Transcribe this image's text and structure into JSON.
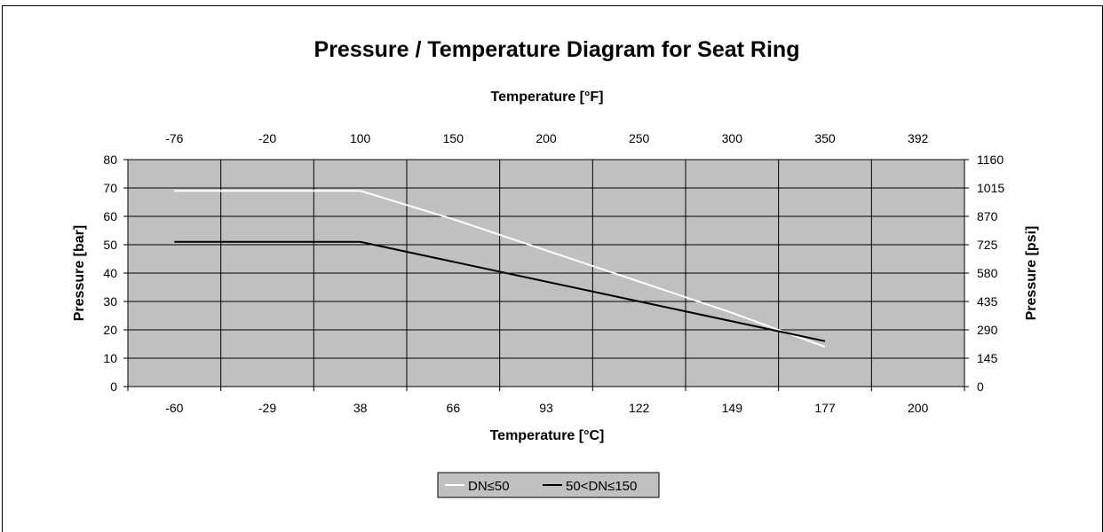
{
  "chart_data": {
    "type": "line",
    "title": "Pressure / Temperature Diagram for Seat Ring",
    "x_top_label": "Temperature [°F]",
    "x_bottom_label": "Temperature [°C]",
    "y_left_label": "Pressure [bar]",
    "y_right_label": "Pressure [psi]",
    "x_categories_c": [
      "-60",
      "-29",
      "38",
      "66",
      "93",
      "122",
      "149",
      "177",
      "200"
    ],
    "x_categories_f": [
      "-76",
      "-20",
      "100",
      "150",
      "200",
      "250",
      "300",
      "350",
      "392"
    ],
    "y_left_ticks": [
      "0",
      "10",
      "20",
      "30",
      "40",
      "50",
      "60",
      "70",
      "80"
    ],
    "y_right_ticks": [
      "0",
      "145",
      "290",
      "435",
      "580",
      "725",
      "870",
      "1015",
      "1160"
    ],
    "ylim": [
      0,
      80
    ],
    "grid": true,
    "legend_position": "bottom",
    "plot_background": "#c0c0c0",
    "series": [
      {
        "name": "DN≤50",
        "color": "#ffffff",
        "x": [
          "-60",
          "-29",
          "38",
          "66",
          "93",
          "122",
          "149",
          "177"
        ],
        "values": [
          69,
          69,
          69,
          59,
          48,
          37,
          26,
          14
        ]
      },
      {
        "name": "50<DN≤150",
        "color": "#000000",
        "x": [
          "-60",
          "-29",
          "38",
          "66",
          "93",
          "122",
          "149",
          "177"
        ],
        "values": [
          51,
          51,
          51,
          44,
          37,
          30,
          23,
          16
        ]
      }
    ]
  }
}
